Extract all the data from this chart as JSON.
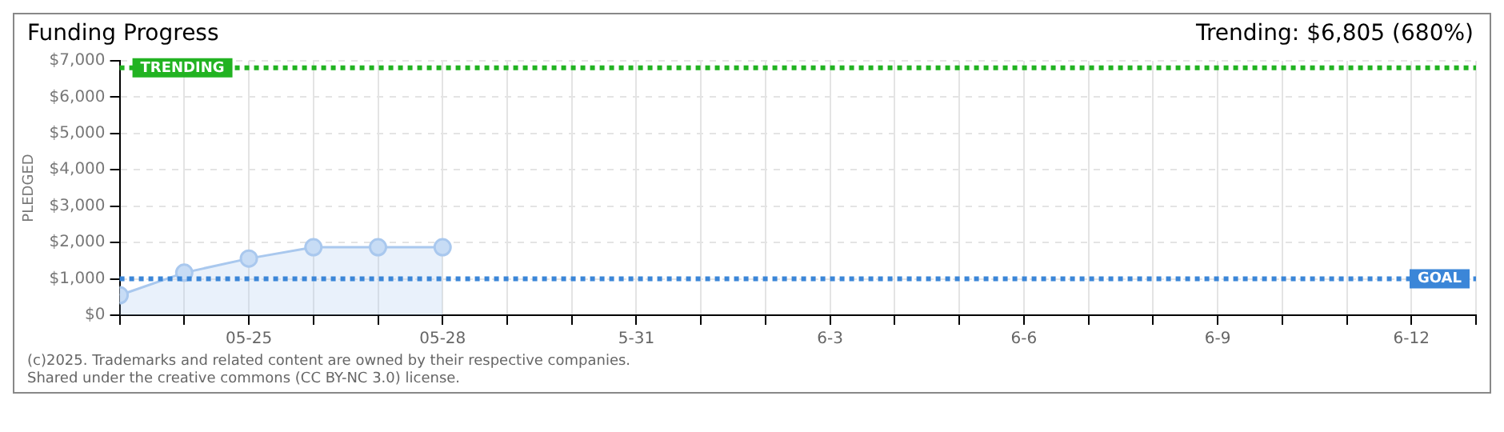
{
  "chart_data": {
    "type": "area",
    "title": "Funding Progress",
    "ylabel": "PLEDGED",
    "annotations": [
      "Trending: $6,805 (680%)",
      "(c)2025. Trademarks and related content are owned by their respective companies.",
      "Shared under the creative commons (CC BY-NC 3.0) license."
    ],
    "x": [
      "--05-23",
      "--05-24",
      "--05-25",
      "--05-26",
      "--05-27",
      "--05-28"
    ],
    "series": [
      {
        "color": "#a9c8ee",
        "values": [
          550,
          1170,
          1560,
          1870,
          1870,
          1870
        ]
      }
    ],
    "xlim": [
      "--05-23",
      "--06-13"
    ],
    "xticks": [
      {
        "value": "--05-23",
        "label": null
      },
      {
        "value": "--05-24",
        "label": null
      },
      {
        "value": "--05-25",
        "label": "05-25"
      },
      {
        "value": "--05-26",
        "label": null
      },
      {
        "value": "--05-27",
        "label": null
      },
      {
        "value": "--05-28",
        "label": "05-28"
      },
      {
        "value": "--05-29",
        "label": null
      },
      {
        "value": "--05-30",
        "label": null
      },
      {
        "value": "--05-31",
        "label": "5-31"
      },
      {
        "value": "--06-01",
        "label": null
      },
      {
        "value": "--06-02",
        "label": null
      },
      {
        "value": "--06-03",
        "label": "6-3"
      },
      {
        "value": "--06-04",
        "label": null
      },
      {
        "value": "--06-05",
        "label": null
      },
      {
        "value": "--06-06",
        "label": "6-6"
      },
      {
        "value": "--06-07",
        "label": null
      },
      {
        "value": "--06-08",
        "label": null
      },
      {
        "value": "--06-09",
        "label": "6-9"
      },
      {
        "value": "--06-10",
        "label": null
      },
      {
        "value": "--06-11",
        "label": null
      },
      {
        "value": "--06-12",
        "label": "6-12"
      },
      {
        "value": "--06-13",
        "label": null
      }
    ],
    "ylim": [
      0,
      7000
    ],
    "yticks": [
      {
        "value": 0,
        "label": "$0"
      },
      {
        "value": 1000,
        "label": "$1,000"
      },
      {
        "value": 2000,
        "label": "$2,000"
      },
      {
        "value": 3000,
        "label": "$3,000"
      },
      {
        "value": 4000,
        "label": "$4,000"
      },
      {
        "value": 5000,
        "label": "$5,000"
      },
      {
        "value": 6000,
        "label": "$6,000"
      },
      {
        "value": 7000,
        "label": "$7,000"
      }
    ],
    "ref_lines": [
      {
        "axis": "y",
        "value": 1000,
        "label": "GOAL",
        "color": "#3b86d8",
        "line_style": "dotted"
      },
      {
        "axis": "y",
        "value": 6805,
        "label": "TRENDING",
        "color": "#22b322",
        "line_style": "dotted"
      }
    ],
    "grid": true,
    "marker": "circle",
    "line_style": "solid",
    "legend": false
  }
}
